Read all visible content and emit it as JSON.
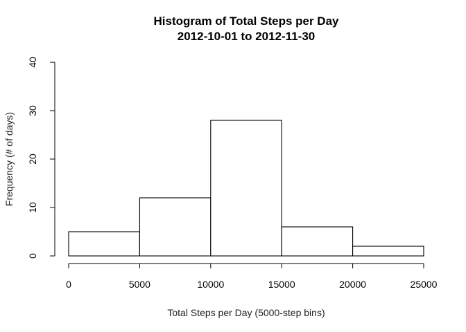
{
  "chart_data": {
    "type": "bar",
    "title": "Histogram of Total Steps per Day",
    "subtitle": "2012-10-01 to 2012-11-30",
    "xlabel": "Total Steps per Day (5000-step bins)",
    "ylabel": "Frequency (# of days)",
    "bins": [
      [
        0,
        5000
      ],
      [
        5000,
        10000
      ],
      [
        10000,
        15000
      ],
      [
        15000,
        20000
      ],
      [
        20000,
        25000
      ]
    ],
    "values": [
      5,
      12,
      28,
      6,
      2
    ],
    "xlim": [
      0,
      25000
    ],
    "ylim": [
      0,
      40
    ],
    "xticks": [
      "0",
      "5000",
      "10000",
      "15000",
      "20000",
      "25000"
    ],
    "yticks": [
      "0",
      "10",
      "20",
      "30",
      "40"
    ],
    "grid": false,
    "legend": "none"
  }
}
